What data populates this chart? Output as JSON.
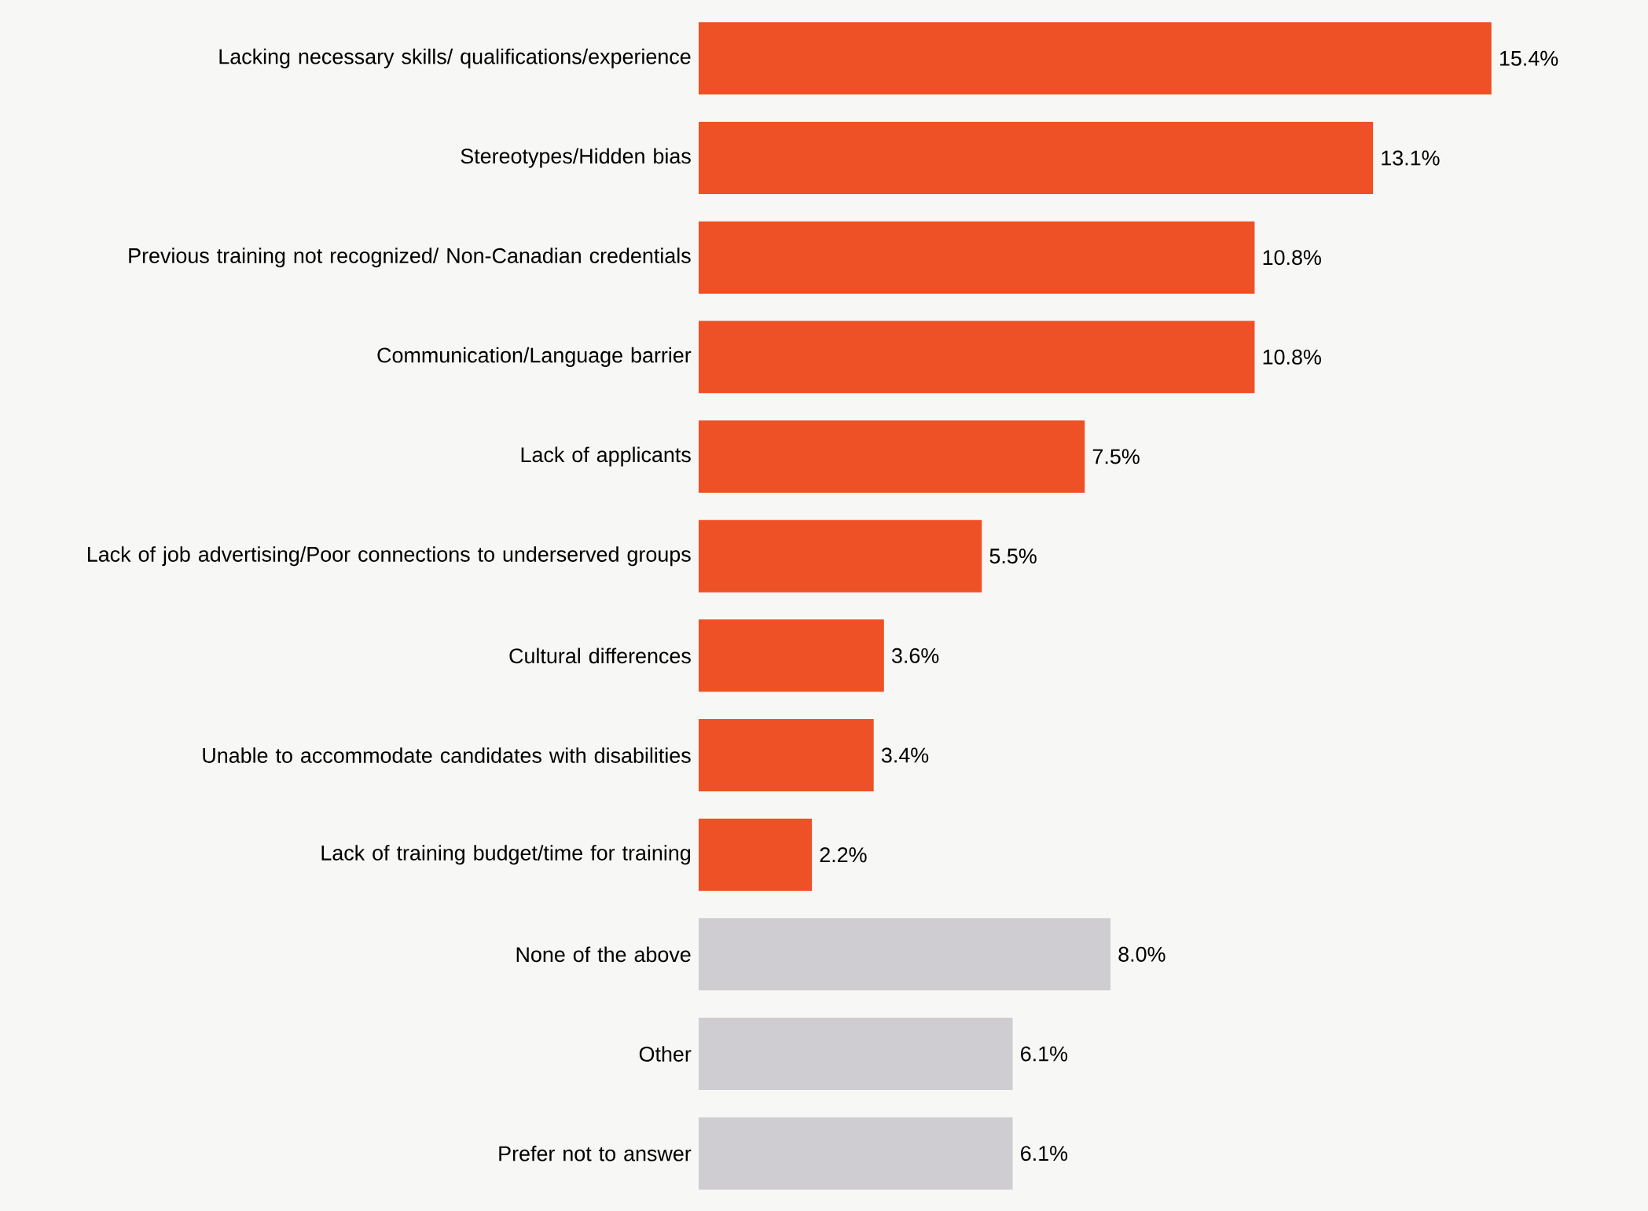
{
  "chart_data": {
    "type": "bar",
    "orientation": "horizontal",
    "categories": [
      "Lacking necessary skills/ qualifications/experience",
      "Stereotypes/Hidden bias",
      "Previous training not recognized/ Non-Canadian credentials",
      "Communication/Language barrier",
      "Lack of applicants",
      "Lack of job advertising/Poor connections to underserved groups",
      "Cultural differences",
      "Unable to accommodate candidates with disabilities",
      "Lack of training budget/time for training",
      "None of the above",
      "Other",
      "Prefer not to answer"
    ],
    "values": [
      15.4,
      13.1,
      10.8,
      10.8,
      7.5,
      5.5,
      3.6,
      3.4,
      2.2,
      8.0,
      6.1,
      6.1
    ],
    "value_labels": [
      "15.4%",
      "13.1%",
      "10.8%",
      "10.8%",
      "7.5%",
      "5.5%",
      "3.6%",
      "3.4%",
      "2.2%",
      "8.0%",
      "6.1%",
      "6.1%"
    ],
    "colors": [
      "#ee5125",
      "#ee5125",
      "#ee5125",
      "#ee5125",
      "#ee5125",
      "#ee5125",
      "#ee5125",
      "#ee5125",
      "#ee5125",
      "#cfcdd2",
      "#cfcdd2",
      "#cfcdd2"
    ]
  }
}
